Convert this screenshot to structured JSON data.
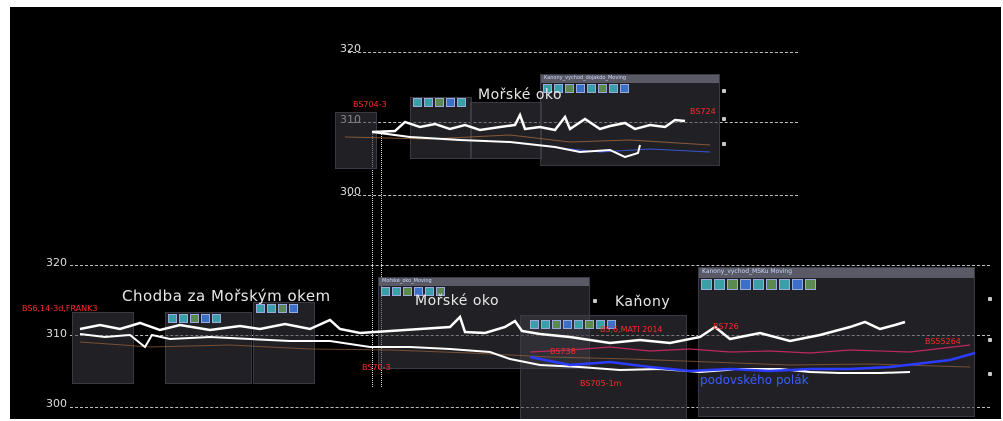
{
  "elevations": {
    "top_320": "320",
    "top_310": "310",
    "top_300": "300",
    "bottom_320": "320",
    "bottom_310": "310",
    "bottom_300": "300"
  },
  "regions": {
    "morske_oko_top": "Mořské oko",
    "chodba": "Chodba za Mořským okem",
    "morske_oko_bottom": "Mořské oko",
    "kanony": "Kaňony",
    "blue_label": "podovského polák"
  },
  "panels": {
    "top_title": "Kanony_vychod_dojakdo_Moving",
    "right_title": "Kanony_vychod_MSKu Moving",
    "mid_title": "Mořské_oko_Moving"
  },
  "stations": {
    "s1": "BS704-3",
    "s2": "BS724",
    "s3": "BS6,14-3d,FRANK3",
    "s4": "BS70-3",
    "s5": "BS705-1m",
    "s6": "BS726",
    "s7": "BS55264",
    "s8": "BS,6,MATI 2014",
    "s9": "BS738"
  },
  "colors": {
    "background": "#000000",
    "profile": "#ffffff",
    "station": "#ff2a2a",
    "blue_path": "#2b3cff"
  }
}
